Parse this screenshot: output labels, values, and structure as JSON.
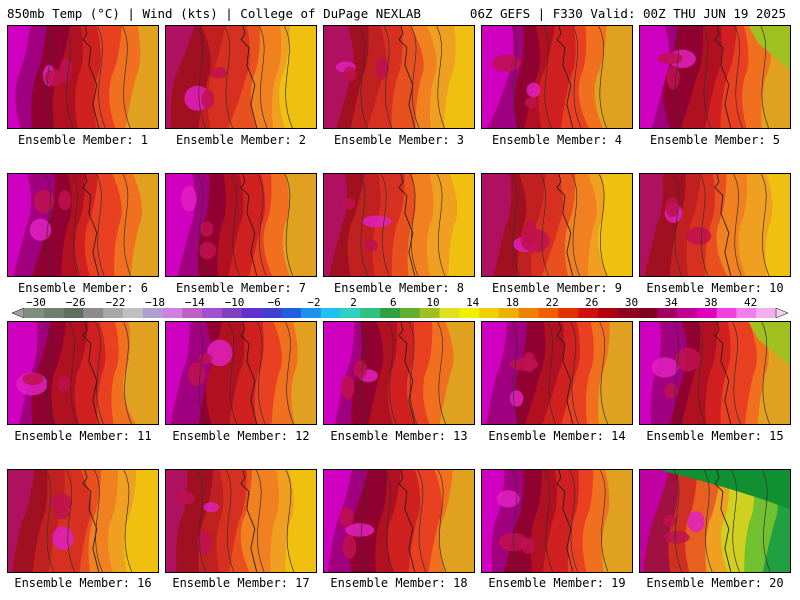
{
  "header": {
    "title_left": "850mb Temp (°C) | Wind (kts) | College of DuPage NEXLAB",
    "title_right": "06Z GEFS | F330 Valid: 00Z THU JUN 19 2025"
  },
  "members": [
    {
      "label": "Ensemble Member: 1",
      "scheme": "hot"
    },
    {
      "label": "Ensemble Member: 2",
      "scheme": "warm"
    },
    {
      "label": "Ensemble Member: 3",
      "scheme": "warm"
    },
    {
      "label": "Ensemble Member: 4",
      "scheme": "hot"
    },
    {
      "label": "Ensemble Member: 5",
      "scheme": "hot-green"
    },
    {
      "label": "Ensemble Member: 6",
      "scheme": "hot"
    },
    {
      "label": "Ensemble Member: 7",
      "scheme": "hot"
    },
    {
      "label": "Ensemble Member: 8",
      "scheme": "warm"
    },
    {
      "label": "Ensemble Member: 9",
      "scheme": "warm"
    },
    {
      "label": "Ensemble Member: 10",
      "scheme": "warm"
    },
    {
      "label": "Ensemble Member: 11",
      "scheme": "hot"
    },
    {
      "label": "Ensemble Member: 12",
      "scheme": "hot"
    },
    {
      "label": "Ensemble Member: 13",
      "scheme": "hot"
    },
    {
      "label": "Ensemble Member: 14",
      "scheme": "hot"
    },
    {
      "label": "Ensemble Member: 15",
      "scheme": "hot-green"
    },
    {
      "label": "Ensemble Member: 16",
      "scheme": "warm"
    },
    {
      "label": "Ensemble Member: 17",
      "scheme": "warm"
    },
    {
      "label": "Ensemble Member: 18",
      "scheme": "hot"
    },
    {
      "label": "Ensemble Member: 19",
      "scheme": "hot"
    },
    {
      "label": "Ensemble Member: 20",
      "scheme": "green"
    }
  ],
  "colorbar": {
    "ticks": [
      "−30",
      "−26",
      "−22",
      "−18",
      "−14",
      "−10",
      "−6",
      "−2",
      "2",
      "6",
      "10",
      "14",
      "18",
      "22",
      "26",
      "30",
      "34",
      "38",
      "42"
    ],
    "colors": [
      "#7f8f7f",
      "#6e7f6e",
      "#5f6f5f",
      "#8c8c8c",
      "#a8a8a8",
      "#c0c0c0",
      "#b0a0d0",
      "#d080e0",
      "#c060c0",
      "#a050d0",
      "#8040c0",
      "#6030d0",
      "#4040d0",
      "#2060e0",
      "#2090f0",
      "#20c0f0",
      "#30d0c0",
      "#30c080",
      "#30a040",
      "#60b030",
      "#a0c020",
      "#e0e020",
      "#f0f000",
      "#f0d000",
      "#f0b000",
      "#f08000",
      "#f06000",
      "#e03000",
      "#d01010",
      "#b00010",
      "#900020",
      "#800020",
      "#a00060",
      "#c00090",
      "#e000c0",
      "#f040e0",
      "#f080f0",
      "#f0b0f0"
    ]
  },
  "palette": {
    "hot": [
      "#e0a020",
      "#f07020",
      "#e84020",
      "#d02020",
      "#b01020",
      "#900030",
      "#a00080",
      "#d000c0"
    ],
    "warm": [
      "#f0c010",
      "#f0a020",
      "#f08020",
      "#e85020",
      "#d83020",
      "#c02020",
      "#a01020",
      "#b01060"
    ],
    "green": [
      "#20a040",
      "#70c030",
      "#d0d020",
      "#f0a020",
      "#e86020",
      "#d03020",
      "#a01040",
      "#c000a0"
    ]
  }
}
